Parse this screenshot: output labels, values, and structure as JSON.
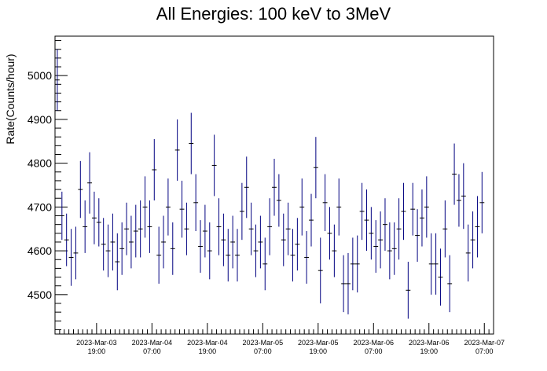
{
  "chart_data": {
    "type": "scatter",
    "title": "All Energies:  100 keV to 3MeV",
    "xlabel": "",
    "ylabel": "Rate(Counts/hour)",
    "ylim": [
      4410,
      5090
    ],
    "xlim": [
      0,
      95
    ],
    "yticks": [
      4500,
      4600,
      4700,
      4800,
      4900,
      5000
    ],
    "xticks": [
      {
        "value": 9,
        "line1": "2023-Mar-03",
        "line2": "19:00"
      },
      {
        "value": 21,
        "line1": "2023-Mar-04",
        "line2": "07:00"
      },
      {
        "value": 33,
        "line1": "2023-Mar-04",
        "line2": "19:00"
      },
      {
        "value": 45,
        "line1": "2023-Mar-05",
        "line2": "07:00"
      },
      {
        "value": 57,
        "line1": "2023-Mar-05",
        "line2": "19:00"
      },
      {
        "value": 69,
        "line1": "2023-Mar-06",
        "line2": "07:00"
      },
      {
        "value": 81,
        "line1": "2023-Mar-06",
        "line2": "19:00"
      },
      {
        "value": 93,
        "line1": "2023-Mar-07",
        "line2": "07:00"
      }
    ],
    "marker_color": "#000080",
    "series": [
      {
        "x": [
          0.5,
          1.5,
          2.5,
          3.5,
          4.5,
          5.5,
          6.5,
          7.5,
          8.5,
          9.5,
          10.5,
          11.5,
          12.5,
          13.5,
          14.5,
          15.5,
          16.5,
          17.5,
          18.5,
          19.5,
          20.5,
          21.5,
          22.5,
          23.5,
          24.5,
          25.5,
          26.5,
          27.5,
          28.5,
          29.5,
          30.5,
          31.5,
          32.5,
          33.5,
          34.5,
          35.5,
          36.5,
          37.5,
          38.5,
          39.5,
          40.5,
          41.5,
          42.5,
          43.5,
          44.5,
          45.5,
          46.5,
          47.5,
          48.5,
          49.5,
          50.5,
          51.5,
          52.5,
          53.5,
          54.5,
          55.5,
          56.5,
          57.5,
          58.5,
          59.5,
          60.5,
          61.5,
          62.5,
          63.5,
          64.5,
          65.5,
          66.5,
          67.5,
          68.5,
          69.5,
          70.5,
          71.5,
          72.5,
          73.5,
          74.5,
          75.5,
          76.5,
          77.5,
          78.5,
          79.5,
          80.5,
          81.5,
          82.5,
          83.5,
          84.5,
          85.5,
          86.5,
          87.5,
          88.5,
          89.5,
          90.5,
          91.5,
          92.5
        ],
        "y": [
          4990,
          4680,
          4625,
          4585,
          4595,
          4740,
          4655,
          4755,
          4675,
          4665,
          4615,
          4600,
          4620,
          4575,
          4605,
          4650,
          4620,
          4645,
          4650,
          4700,
          4655,
          4785,
          4590,
          4620,
          4700,
          4605,
          4830,
          4695,
          4650,
          4845,
          4710,
          4610,
          4645,
          4600,
          4795,
          4655,
          4625,
          4590,
          4620,
          4590,
          4690,
          4745,
          4650,
          4600,
          4620,
          4570,
          4655,
          4745,
          4715,
          4625,
          4650,
          4590,
          4615,
          4700,
          4585,
          4670,
          4790,
          4555,
          4710,
          4640,
          4600,
          4700,
          4525,
          4525,
          4570,
          4570,
          4690,
          4670,
          4640,
          4610,
          4625,
          4660,
          4600,
          4605,
          4650,
          4690,
          4510,
          4695,
          4635,
          4675,
          4700,
          4570,
          4570,
          4540,
          4650,
          4525,
          4775,
          4715,
          4725,
          4595,
          4625,
          4655,
          4710
        ],
        "err": [
          70,
          55,
          60,
          65,
          60,
          65,
          60,
          70,
          60,
          55,
          60,
          60,
          65,
          65,
          60,
          60,
          60,
          60,
          65,
          70,
          60,
          70,
          65,
          60,
          65,
          60,
          70,
          65,
          60,
          70,
          65,
          60,
          60,
          65,
          70,
          65,
          60,
          60,
          60,
          60,
          65,
          70,
          60,
          60,
          60,
          60,
          65,
          65,
          60,
          60,
          60,
          60,
          60,
          65,
          60,
          60,
          70,
          75,
          65,
          60,
          60,
          65,
          65,
          70,
          60,
          65,
          65,
          70,
          60,
          60,
          65,
          60,
          65,
          60,
          70,
          65,
          65,
          60,
          60,
          65,
          70,
          70,
          70,
          65,
          65,
          65,
          70,
          60,
          75,
          65,
          65,
          70,
          70
        ]
      }
    ]
  }
}
